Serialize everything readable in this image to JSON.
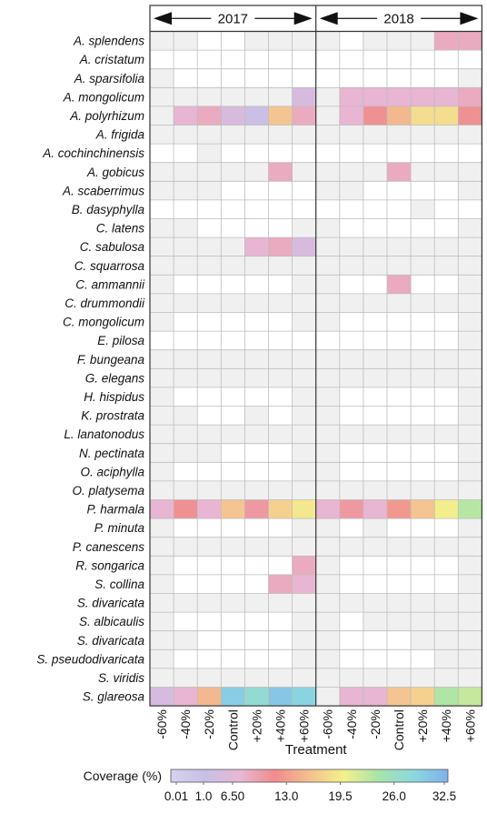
{
  "chart_data": {
    "type": "heatmap",
    "xlabel": "Treatment",
    "years": [
      "2017",
      "2018"
    ],
    "treatments": [
      "-60%",
      "-40%",
      "-20%",
      "Control",
      "+20%",
      "+40%",
      "+60%"
    ],
    "species": [
      "A. splendens",
      "A. cristatum",
      "A. sparsifolia",
      "A. mongolicum",
      "A. polyrhizum",
      "A. frigida",
      "A. cochinchinensis",
      "A. gobicus",
      "A. scaberrimus",
      "B. dasyphylla",
      "C. latens",
      "C. sabulosa",
      "C. squarrosa",
      "C. ammannii",
      "C. drummondii",
      "C. mongolicum",
      "E. pilosa",
      "F. bungeana",
      "G. elegans",
      "H. hispidus",
      "K. prostrata",
      "L. lanatonodus",
      "N. pectinata",
      "O. aciphylla",
      "O. platysema",
      "P. harmala",
      "P. minuta",
      "P. canescens",
      "R. songarica",
      "S. collina",
      "S. divaricata",
      "S. albicaulis",
      "S. divaricata",
      "S. pseudodivaricata",
      "S. viridis",
      "S. glareosa"
    ],
    "values": [
      [
        0.3,
        0.3,
        0,
        0,
        0.3,
        0.3,
        0.3,
        0.3,
        0,
        0.3,
        0.3,
        0.3,
        3.5,
        3.5
      ],
      [
        0,
        0,
        0,
        0,
        0,
        0,
        0,
        0,
        0,
        0,
        0,
        0,
        0,
        0
      ],
      [
        0.3,
        0,
        0,
        0,
        0,
        0,
        0,
        0,
        0,
        0,
        0,
        0,
        0,
        0.3
      ],
      [
        0.3,
        0.3,
        0.3,
        0.3,
        0.3,
        0.3,
        2.0,
        0.3,
        3.0,
        3.0,
        3.0,
        3.0,
        3.0,
        3.5
      ],
      [
        0.3,
        3.0,
        3.5,
        2.0,
        1.5,
        9.0,
        3.5,
        0.3,
        3.0,
        5.0,
        8.0,
        11.0,
        11.0,
        5.0
      ],
      [
        0.3,
        0.3,
        0.3,
        0.3,
        0.3,
        0.3,
        0.3,
        0.3,
        0.3,
        0.3,
        0.3,
        0.3,
        0.3,
        0.3
      ],
      [
        0,
        0,
        0.3,
        0,
        0,
        0,
        0,
        0,
        0,
        0,
        0,
        0,
        0,
        0
      ],
      [
        0.3,
        0.3,
        0.3,
        0.3,
        0.3,
        3.5,
        0.3,
        0.3,
        0.3,
        0.3,
        3.5,
        0.3,
        0.3,
        0.3
      ],
      [
        0.3,
        0.3,
        0.3,
        0,
        0,
        0,
        0,
        0.3,
        0.3,
        0,
        0,
        0,
        0,
        0.3
      ],
      [
        0,
        0,
        0,
        0,
        0,
        0,
        0,
        0,
        0,
        0,
        0,
        0.3,
        0,
        0
      ],
      [
        0.3,
        0.3,
        0,
        0,
        0,
        0,
        0.3,
        0.3,
        0,
        0,
        0,
        0,
        0,
        0.3
      ],
      [
        0.3,
        0.3,
        0.3,
        0.3,
        3.0,
        3.5,
        2.0,
        0.3,
        0.3,
        0.3,
        0.3,
        0.3,
        0.3,
        0.3
      ],
      [
        0.3,
        0.3,
        0.3,
        0.3,
        0.3,
        0.3,
        0.3,
        0.3,
        0.3,
        0.3,
        0.3,
        0.3,
        0.3,
        0.3
      ],
      [
        0.3,
        0,
        0,
        0,
        0,
        0,
        0.3,
        0.3,
        0,
        0,
        3.5,
        0,
        0,
        0.3
      ],
      [
        0.3,
        0.3,
        0.3,
        0.3,
        0.3,
        0.3,
        0.3,
        0.3,
        0.3,
        0.3,
        0.3,
        0.3,
        0.3,
        0.3
      ],
      [
        0.3,
        0,
        0,
        0,
        0,
        0,
        0.3,
        0.3,
        0,
        0,
        0,
        0,
        0,
        0.3
      ],
      [
        0,
        0,
        0,
        0,
        0,
        0,
        0,
        0,
        0,
        0,
        0,
        0,
        0,
        0.3
      ],
      [
        0.3,
        0.3,
        0.3,
        0.3,
        0.3,
        0.3,
        0.3,
        0.3,
        0.3,
        0.3,
        0.3,
        0.3,
        0.3,
        0.3
      ],
      [
        0.3,
        0.3,
        0.3,
        0.3,
        0.3,
        0.3,
        0.3,
        0.3,
        0.3,
        0.3,
        0.3,
        0.3,
        0.3,
        0.3
      ],
      [
        0.3,
        0,
        0,
        0,
        0,
        0,
        0.3,
        0.3,
        0,
        0,
        0,
        0,
        0,
        0.3
      ],
      [
        0.3,
        0.3,
        0,
        0,
        0.3,
        0,
        0.3,
        0.3,
        0,
        0,
        0,
        0,
        0,
        0.3
      ],
      [
        0.3,
        0.3,
        0.3,
        0.3,
        0.3,
        0.3,
        0.3,
        0.3,
        0.3,
        0.3,
        0.3,
        0.3,
        0.3,
        0.3
      ],
      [
        0.3,
        0.3,
        0.3,
        0,
        0,
        0,
        0.3,
        0.3,
        0,
        0,
        0,
        0,
        0,
        0.3
      ],
      [
        0.3,
        0,
        0,
        0,
        0,
        0,
        0.3,
        0.3,
        0,
        0,
        0,
        0,
        0,
        0.3
      ],
      [
        0.3,
        0.3,
        0.3,
        0.3,
        0.3,
        0.3,
        0.3,
        0.3,
        0.3,
        0.3,
        0.3,
        0.3,
        0.3,
        0.3
      ],
      [
        3.0,
        5.0,
        3.0,
        9.0,
        4.5,
        10.0,
        12.0,
        3.0,
        4.5,
        3.0,
        6.0,
        9.0,
        12.5,
        17.0
      ],
      [
        0.3,
        0,
        0,
        0,
        0,
        0,
        0.3,
        0.3,
        0,
        0.3,
        0,
        0,
        0,
        0.3
      ],
      [
        0.3,
        0.3,
        0.3,
        0.3,
        0.3,
        0.3,
        0.3,
        0.3,
        0.3,
        0.3,
        0.3,
        0.3,
        0.3,
        0.3
      ],
      [
        0.3,
        0,
        0,
        0,
        0,
        0,
        3.5,
        0.3,
        0,
        0,
        0,
        0,
        0,
        0.3
      ],
      [
        0.3,
        0,
        0,
        0,
        0,
        3.5,
        3.0,
        0.3,
        0,
        0,
        0,
        0,
        0,
        0.3
      ],
      [
        0.3,
        0.3,
        0.3,
        0.3,
        0.3,
        0.3,
        0.3,
        0.3,
        0.3,
        0.3,
        0.3,
        0.3,
        0.3,
        0.3
      ],
      [
        0.3,
        0,
        0,
        0,
        0,
        0,
        0.3,
        0.3,
        0,
        0.3,
        0.3,
        0.3,
        0.3,
        0.3
      ],
      [
        0.3,
        0.3,
        0,
        0,
        0,
        0,
        0.3,
        0.3,
        0,
        0,
        0,
        0.3,
        0.3,
        0.3
      ],
      [
        0.3,
        0,
        0,
        0,
        0,
        0,
        0.3,
        0.3,
        0,
        0,
        0,
        0,
        0.3,
        0.3
      ],
      [
        0.3,
        0.3,
        0.3,
        0.3,
        0.3,
        0.3,
        0.3,
        0.3,
        0.3,
        0.3,
        0.3,
        0.3,
        0.3,
        0.3
      ],
      [
        2.0,
        3.0,
        8.0,
        26.0,
        22.5,
        27.0,
        25.0,
        0.3,
        3.0,
        3.0,
        9.0,
        10.0,
        17.5,
        16.0
      ]
    ],
    "colorbar": {
      "title": "Coverage (%)",
      "ticks": [
        "0.01",
        "1.0",
        "6.50",
        "13.0",
        "19.5",
        "26.0",
        "32.5"
      ],
      "range": [
        0,
        32.5
      ],
      "low_color": "#f0f0f0",
      "stops": [
        "#d6d2ee",
        "#c9bfe6",
        "#e8b7d6",
        "#f08c8c",
        "#f4c090",
        "#f4f08c",
        "#a8e4a8",
        "#8cd8e0",
        "#7fb0ec"
      ]
    },
    "grid": true
  }
}
